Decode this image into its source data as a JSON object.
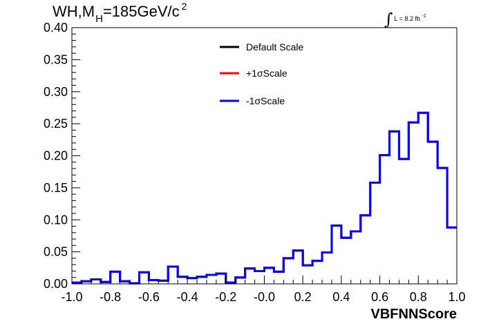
{
  "title": {
    "main": "WH,M",
    "subscript": "H",
    "rest": "=185GeV/c",
    "superscript": "2"
  },
  "lumi": {
    "integral": "∫",
    "text": "L = 8.2 fb",
    "superscript": "-1"
  },
  "chart_data": {
    "type": "histogram",
    "xlabel": "VBFNNScore",
    "xlim": [
      -1.0,
      1.0
    ],
    "ylim": [
      0,
      0.4
    ],
    "x_ticks": [
      "-1.0",
      "-0.8",
      "-0.6",
      "-0.4",
      "-0.2",
      "-0.0",
      "0.2",
      "0.4",
      "0.6",
      "0.8",
      "1.0"
    ],
    "y_ticks": [
      "0.00",
      "0.05",
      "0.10",
      "0.15",
      "0.20",
      "0.25",
      "0.30",
      "0.35",
      "0.40"
    ],
    "legend_position": "top-center",
    "bin_edges_start": -1.0,
    "bin_width": 0.05,
    "series": [
      {
        "name": "Default Scale",
        "color": "#000000",
        "values": [
          0.002,
          0.004,
          0.007,
          0.003,
          0.019,
          0.004,
          0.001,
          0.018,
          0.006,
          0.005,
          0.027,
          0.011,
          0.009,
          0.011,
          0.014,
          0.016,
          0.002,
          0.01,
          0.024,
          0.02,
          0.025,
          0.019,
          0.04,
          0.052,
          0.029,
          0.036,
          0.049,
          0.091,
          0.072,
          0.082,
          0.107,
          0.158,
          0.201,
          0.238,
          0.195,
          0.252,
          0.267,
          0.222,
          0.181,
          0.088
        ]
      },
      {
        "name": "+1σScale",
        "color": "#ff0000",
        "values": [
          0.002,
          0.004,
          0.007,
          0.003,
          0.019,
          0.004,
          0.001,
          0.018,
          0.006,
          0.005,
          0.027,
          0.011,
          0.009,
          0.011,
          0.014,
          0.016,
          0.002,
          0.01,
          0.024,
          0.02,
          0.025,
          0.019,
          0.04,
          0.052,
          0.029,
          0.036,
          0.049,
          0.091,
          0.072,
          0.082,
          0.107,
          0.158,
          0.201,
          0.238,
          0.195,
          0.252,
          0.267,
          0.222,
          0.181,
          0.088
        ]
      },
      {
        "name": "-1σScale",
        "color": "#0000ff",
        "values": [
          0.002,
          0.004,
          0.007,
          0.003,
          0.019,
          0.004,
          0.001,
          0.018,
          0.006,
          0.005,
          0.027,
          0.011,
          0.009,
          0.011,
          0.014,
          0.016,
          0.002,
          0.01,
          0.024,
          0.02,
          0.025,
          0.019,
          0.04,
          0.052,
          0.029,
          0.036,
          0.049,
          0.091,
          0.072,
          0.082,
          0.107,
          0.158,
          0.201,
          0.238,
          0.195,
          0.252,
          0.267,
          0.222,
          0.181,
          0.088
        ]
      }
    ]
  }
}
